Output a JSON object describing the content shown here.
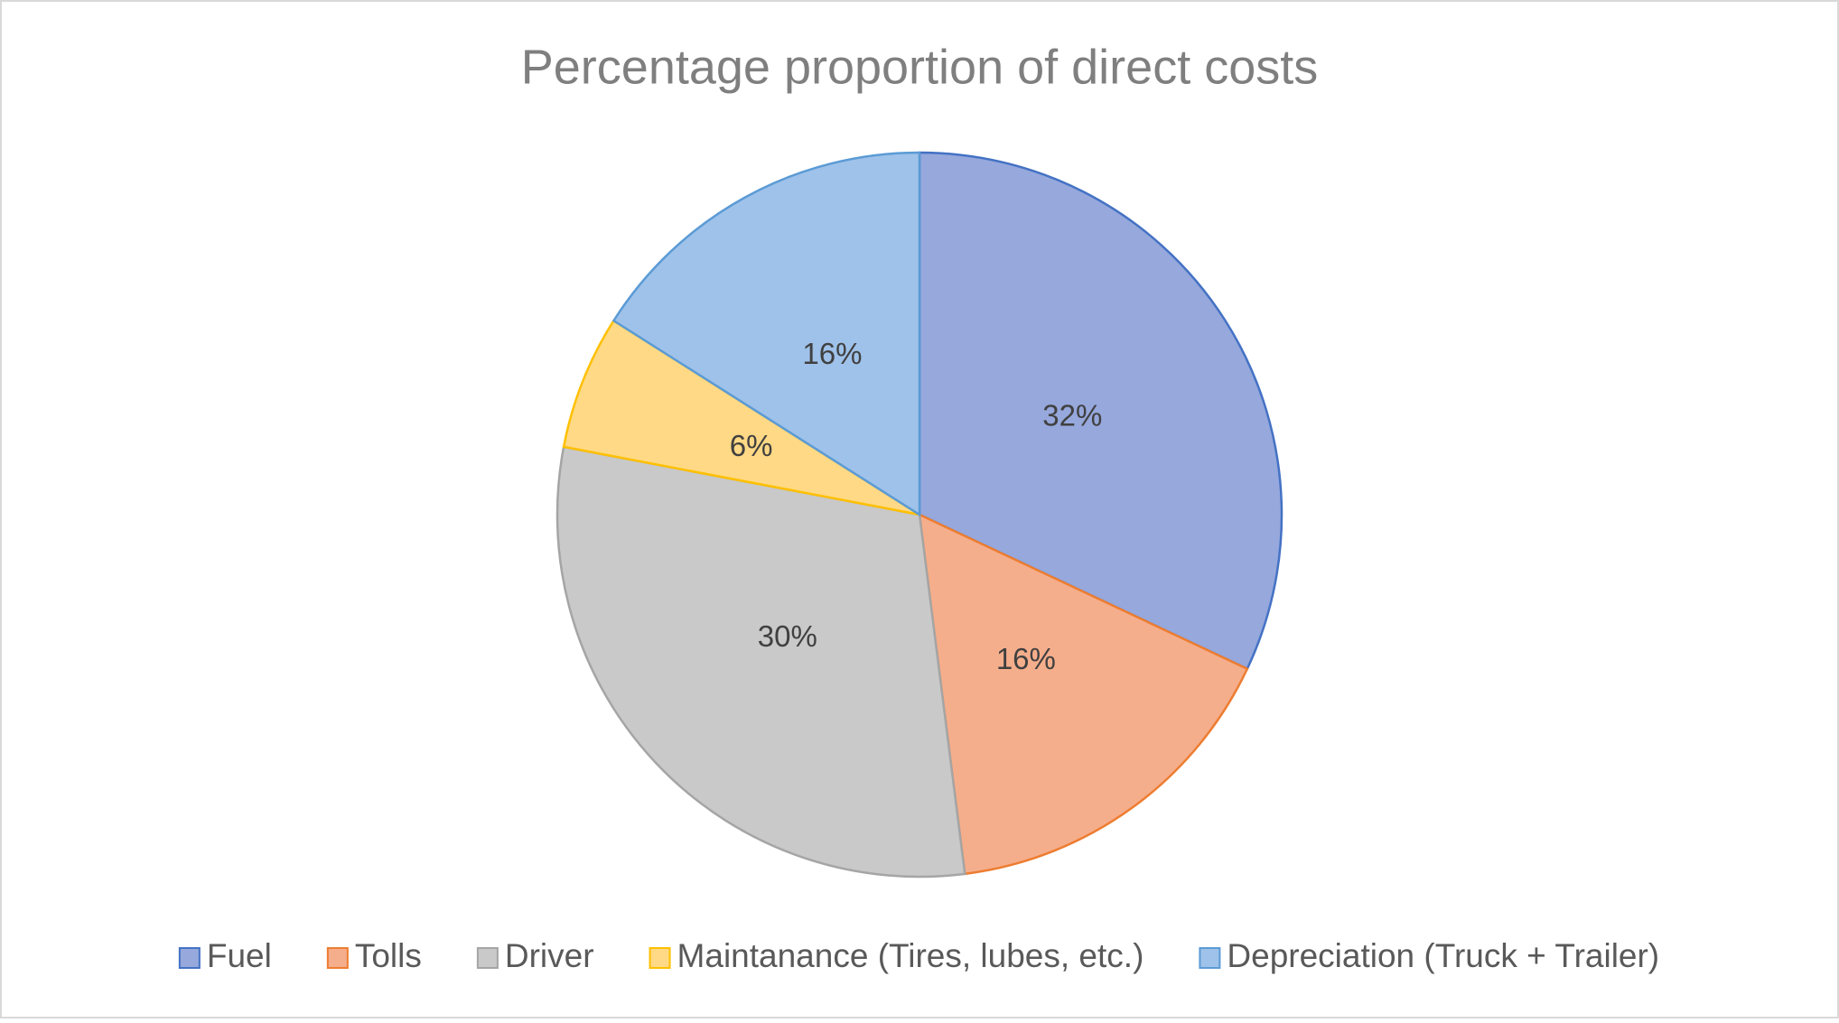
{
  "chart_data": {
    "type": "pie",
    "title": "Percentage proportion of direct costs",
    "categories": [
      "Fuel",
      "Tolls",
      "Driver",
      "Maintanance (Tires, lubes, etc.)",
      "Depreciation (Truck + Trailer)"
    ],
    "values": [
      32,
      16,
      30,
      6,
      16
    ],
    "value_labels": [
      "32%",
      "16%",
      "30%",
      "6%",
      "16%"
    ],
    "colors": [
      "#96a8dc",
      "#f5ae8c",
      "#c9c9c9",
      "#ffd985",
      "#9fc2ea"
    ],
    "edge_colors": [
      "#4472c4",
      "#ed7d31",
      "#a5a5a5",
      "#ffc000",
      "#5b9bd5"
    ],
    "legend": "bottom"
  }
}
